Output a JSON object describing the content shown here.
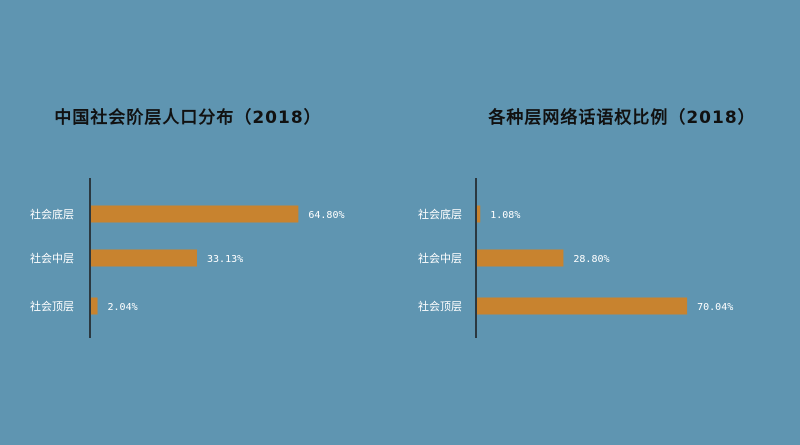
{
  "chart_data": [
    {
      "type": "bar",
      "orientation": "horizontal",
      "title": "中国社会阶层人口分布（2018）",
      "categories": [
        "社会底层",
        "社会中层",
        "社会顶层"
      ],
      "values": [
        64.8,
        33.13,
        2.04
      ],
      "value_labels": [
        "64.80%",
        "33.13%",
        "2.04%"
      ],
      "xlim": [
        0,
        100
      ],
      "grid": false,
      "bar_color": "#c8832f"
    },
    {
      "type": "bar",
      "orientation": "horizontal",
      "title": "各种层网络话语权比例（2018）",
      "categories": [
        "社会底层",
        "社会中层",
        "社会顶层"
      ],
      "values": [
        1.08,
        28.8,
        70.04
      ],
      "value_labels": [
        "1.08%",
        "28.80%",
        "70.04%"
      ],
      "xlim": [
        0,
        100
      ],
      "grid": false,
      "bar_color": "#c8832f"
    }
  ],
  "colors": {
    "background": "#5f95b1",
    "axis": "#1a1a1a",
    "label": "#ffffff"
  }
}
